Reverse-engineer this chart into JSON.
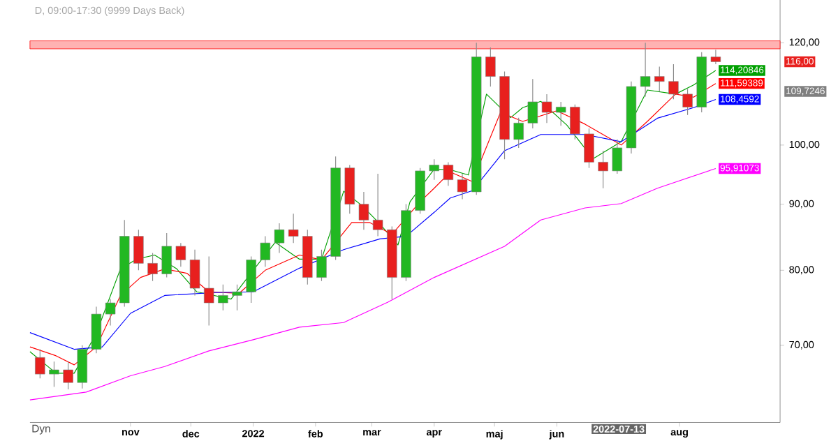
{
  "chart_data": {
    "type": "candlestick",
    "title": "D, 09:00-17:30 (9999 Days Back)",
    "x": [
      "2021-09-17",
      "2021-09-24",
      "2021-10-01",
      "2021-10-08",
      "2021-10-15",
      "2021-10-22",
      "2021-10-29",
      "2021-11-05",
      "2021-11-12",
      "2021-11-19",
      "2021-11-26",
      "2021-12-03",
      "2021-12-10",
      "2021-12-17",
      "2021-12-24",
      "2021-12-31",
      "2022-01-07",
      "2022-01-14",
      "2022-01-21",
      "2022-01-28",
      "2022-02-04",
      "2022-02-11",
      "2022-02-18",
      "2022-02-25",
      "2022-03-04",
      "2022-03-11",
      "2022-03-18",
      "2022-03-25",
      "2022-04-01",
      "2022-04-08",
      "2022-04-15",
      "2022-04-22",
      "2022-04-29",
      "2022-05-06",
      "2022-05-13",
      "2022-05-20",
      "2022-05-27",
      "2022-06-03",
      "2022-06-10",
      "2022-06-17",
      "2022-06-24",
      "2022-07-01",
      "2022-07-08",
      "2022-07-15",
      "2022-07-22",
      "2022-07-29",
      "2022-08-05",
      "2022-08-12",
      "2022-08-19"
    ],
    "ohlc": [
      [
        68.5,
        69.5,
        66,
        66.5
      ],
      [
        66.5,
        68,
        65,
        67
      ],
      [
        67,
        68,
        64.7,
        65.5
      ],
      [
        65.5,
        70,
        64.8,
        69.5
      ],
      [
        69.5,
        75,
        69,
        74
      ],
      [
        74,
        76,
        72.5,
        75.5
      ],
      [
        75.5,
        87.5,
        75,
        85
      ],
      [
        85,
        86,
        80,
        81
      ],
      [
        81,
        82.5,
        78.5,
        79.5
      ],
      [
        79.5,
        85.5,
        79,
        83.5
      ],
      [
        83.5,
        84,
        80.5,
        81.5
      ],
      [
        81.5,
        83,
        76.5,
        77.5
      ],
      [
        77.5,
        82,
        72.5,
        75.5
      ],
      [
        75.5,
        78,
        74.5,
        76.5
      ],
      [
        76.5,
        78,
        74.5,
        77
      ],
      [
        77,
        82,
        75.5,
        81.5
      ],
      [
        81.5,
        85,
        80.5,
        84
      ],
      [
        84,
        87,
        82.5,
        86
      ],
      [
        86,
        88.5,
        84,
        85
      ],
      [
        85,
        86,
        78,
        79
      ],
      [
        79,
        83,
        78.5,
        82
      ],
      [
        82,
        98,
        81.5,
        96
      ],
      [
        96,
        96.5,
        88.5,
        90
      ],
      [
        90,
        92,
        86,
        87.5
      ],
      [
        87.5,
        95,
        85,
        86
      ],
      [
        86,
        86.5,
        76,
        79
      ],
      [
        79,
        90,
        78.5,
        89
      ],
      [
        89,
        96,
        88.5,
        95.5
      ],
      [
        95.5,
        97.5,
        94,
        96.5
      ],
      [
        96.5,
        97,
        93,
        94
      ],
      [
        94,
        95,
        90.8,
        92
      ],
      [
        92,
        120,
        91.5,
        117
      ],
      [
        117,
        119,
        111,
        113
      ],
      [
        113,
        114,
        97.5,
        101
      ],
      [
        101,
        105,
        99.5,
        104
      ],
      [
        104,
        112.5,
        103,
        108
      ],
      [
        108,
        109.5,
        104,
        106
      ],
      [
        106,
        108,
        103.5,
        107
      ],
      [
        107,
        107.5,
        101,
        102
      ],
      [
        102,
        103,
        96,
        97
      ],
      [
        97,
        99,
        92.6,
        95.5
      ],
      [
        95.5,
        101,
        95,
        99.5
      ],
      [
        99.5,
        112,
        98.5,
        111
      ],
      [
        111,
        120,
        109,
        113
      ],
      [
        113,
        115,
        110,
        112
      ],
      [
        112,
        115.5,
        108.5,
        109.5
      ],
      [
        109.5,
        110.5,
        105.5,
        107
      ],
      [
        107,
        118,
        106,
        117
      ],
      [
        117,
        118.5,
        115.5,
        116
      ]
    ],
    "value_labels": [
      null,
      null,
      null,
      null,
      null,
      null,
      null,
      null,
      null,
      null,
      null,
      null,
      null,
      null,
      null,
      null,
      null,
      null,
      null,
      null,
      null,
      null,
      null,
      null,
      null,
      null,
      null,
      null,
      null,
      null,
      null,
      null,
      null,
      null,
      null,
      null,
      null,
      null,
      null,
      null,
      null,
      null,
      null,
      null,
      null,
      null,
      null,
      null,
      "116,00"
    ],
    "series": [
      {
        "type": "line",
        "color": "#00a000",
        "x": [
          "2021-09-12",
          "2021-09-25",
          "2021-10-04",
          "2021-10-15",
          "2021-10-27",
          "2021-11-04",
          "2021-11-13",
          "2021-11-24",
          "2021-12-04",
          "2021-12-21",
          "2022-01-01",
          "2022-01-12",
          "2022-01-24",
          "2022-02-04",
          "2022-02-15",
          "2022-02-24",
          "2022-03-05",
          "2022-03-14",
          "2022-03-20",
          "2022-04-01",
          "2022-04-09",
          "2022-04-18",
          "2022-04-27",
          "2022-05-09",
          "2022-05-15",
          "2022-05-24",
          "2022-06-06",
          "2022-06-19",
          "2022-07-03",
          "2022-07-16",
          "2022-07-30",
          "2022-08-08",
          "2022-08-19"
        ],
        "values": [
          69.2,
          66.6,
          66.6,
          71.5,
          80.2,
          81.6,
          82.2,
          80.2,
          77,
          76,
          80,
          84.1,
          81.6,
          81.6,
          92.1,
          89.8,
          86.9,
          83.7,
          90.4,
          95.8,
          95.7,
          94.8,
          109.5,
          105,
          106.9,
          108.1,
          103.6,
          97.6,
          100.6,
          110.3,
          109.5,
          111.3,
          114.20846
        ],
        "value_labels": [
          null,
          null,
          null,
          null,
          null,
          null,
          null,
          null,
          null,
          null,
          null,
          null,
          null,
          null,
          null,
          null,
          null,
          null,
          null,
          null,
          null,
          null,
          null,
          null,
          null,
          null,
          null,
          null,
          null,
          null,
          null,
          null,
          "114,20846"
        ]
      },
      {
        "type": "line",
        "color": "#ff0000",
        "x": [
          "2021-09-12",
          "2021-09-25",
          "2021-10-04",
          "2021-10-15",
          "2021-10-27",
          "2021-11-06",
          "2021-11-18",
          "2021-11-29",
          "2021-12-10",
          "2021-12-25",
          "2022-01-07",
          "2022-01-24",
          "2022-02-04",
          "2022-02-19",
          "2022-02-28",
          "2022-03-11",
          "2022-03-25",
          "2022-04-01",
          "2022-04-09",
          "2022-04-20",
          "2022-05-04",
          "2022-05-15",
          "2022-06-01",
          "2022-06-15",
          "2022-07-03",
          "2022-07-16",
          "2022-07-30",
          "2022-08-08",
          "2022-08-19"
        ],
        "values": [
          69.8,
          68.7,
          67.6,
          69.8,
          76.5,
          79,
          80.2,
          79.6,
          77,
          76.8,
          80,
          82.2,
          81.5,
          87.1,
          87.1,
          85.3,
          90.4,
          92.6,
          95.3,
          93.7,
          106,
          104.3,
          106.3,
          103.8,
          100,
          104.3,
          109.5,
          108.9,
          111.59389
        ],
        "value_labels": [
          null,
          null,
          null,
          null,
          null,
          null,
          null,
          null,
          null,
          null,
          null,
          null,
          null,
          null,
          null,
          null,
          null,
          null,
          null,
          null,
          null,
          null,
          null,
          null,
          null,
          null,
          null,
          null,
          "111,59389"
        ]
      },
      {
        "type": "line",
        "color": "#0000ff",
        "x": [
          "2021-09-12",
          "2021-10-04",
          "2021-10-18",
          "2021-11-01",
          "2021-11-18",
          "2021-12-13",
          "2022-01-01",
          "2022-01-24",
          "2022-02-15",
          "2022-03-05",
          "2022-03-18",
          "2022-04-01",
          "2022-04-09",
          "2022-04-20",
          "2022-05-06",
          "2022-05-24",
          "2022-06-15",
          "2022-07-03",
          "2022-07-21",
          "2022-08-08",
          "2022-08-19"
        ],
        "values": [
          71.6,
          69.5,
          69.8,
          74.1,
          76.5,
          76.9,
          77,
          80.3,
          83,
          84.6,
          85,
          88.7,
          91,
          92.2,
          99,
          101.9,
          101.9,
          100.6,
          104.9,
          106.9,
          108.4592
        ],
        "value_labels": [
          null,
          null,
          null,
          null,
          null,
          null,
          null,
          null,
          null,
          null,
          null,
          null,
          null,
          null,
          null,
          null,
          null,
          null,
          null,
          null,
          "108,4592"
        ]
      },
      {
        "type": "line",
        "color": "#ff00ff",
        "x": [
          "2021-09-12",
          "2021-10-10",
          "2021-11-01",
          "2021-11-18",
          "2021-12-10",
          "2022-01-01",
          "2022-01-24",
          "2022-02-15",
          "2022-03-09",
          "2022-04-01",
          "2022-05-06",
          "2022-05-24",
          "2022-06-15",
          "2022-07-03",
          "2022-07-21",
          "2022-08-19"
        ],
        "values": [
          63.5,
          64.4,
          66.3,
          67.4,
          69.3,
          70.7,
          72.3,
          72.9,
          75.6,
          79,
          83.5,
          87.5,
          89.4,
          90.1,
          92.6,
          95.91073
        ],
        "value_labels": [
          null,
          null,
          null,
          null,
          null,
          null,
          null,
          null,
          null,
          null,
          null,
          null,
          null,
          null,
          null,
          "95,91073"
        ]
      }
    ],
    "xlim": [
      "2021-09-12",
      "2022-09-20"
    ],
    "xticks": [
      {
        "value": "2021-11-01",
        "label": "nov"
      },
      {
        "value": "2021-12-01",
        "label": "dec"
      },
      {
        "value": "2022-01-01",
        "label": "2022"
      },
      {
        "value": "2022-02-01",
        "label": "feb"
      },
      {
        "value": "2022-03-01",
        "label": "mar"
      },
      {
        "value": "2022-04-01",
        "label": "apr"
      },
      {
        "value": "2022-05-01",
        "label": "maj"
      },
      {
        "value": "2022-06-01",
        "label": "jun"
      },
      {
        "value": "2022-08-01",
        "label": "aug"
      }
    ],
    "ylim": [
      61,
      129.5
    ],
    "yticks": [
      {
        "value": 70,
        "label": "70,00"
      },
      {
        "value": 80,
        "label": "80,00"
      },
      {
        "value": 90,
        "label": "90,00"
      },
      {
        "value": 100,
        "label": "100,00"
      },
      {
        "value": 120,
        "label": "120,00"
      }
    ],
    "log": "y",
    "bands": [
      {
        "axis": "y",
        "from": 118.7,
        "to": 120.4,
        "color": "#ff0000"
      }
    ],
    "annotations": [
      "Dyn",
      "2022-07-13",
      "109,7246"
    ]
  }
}
